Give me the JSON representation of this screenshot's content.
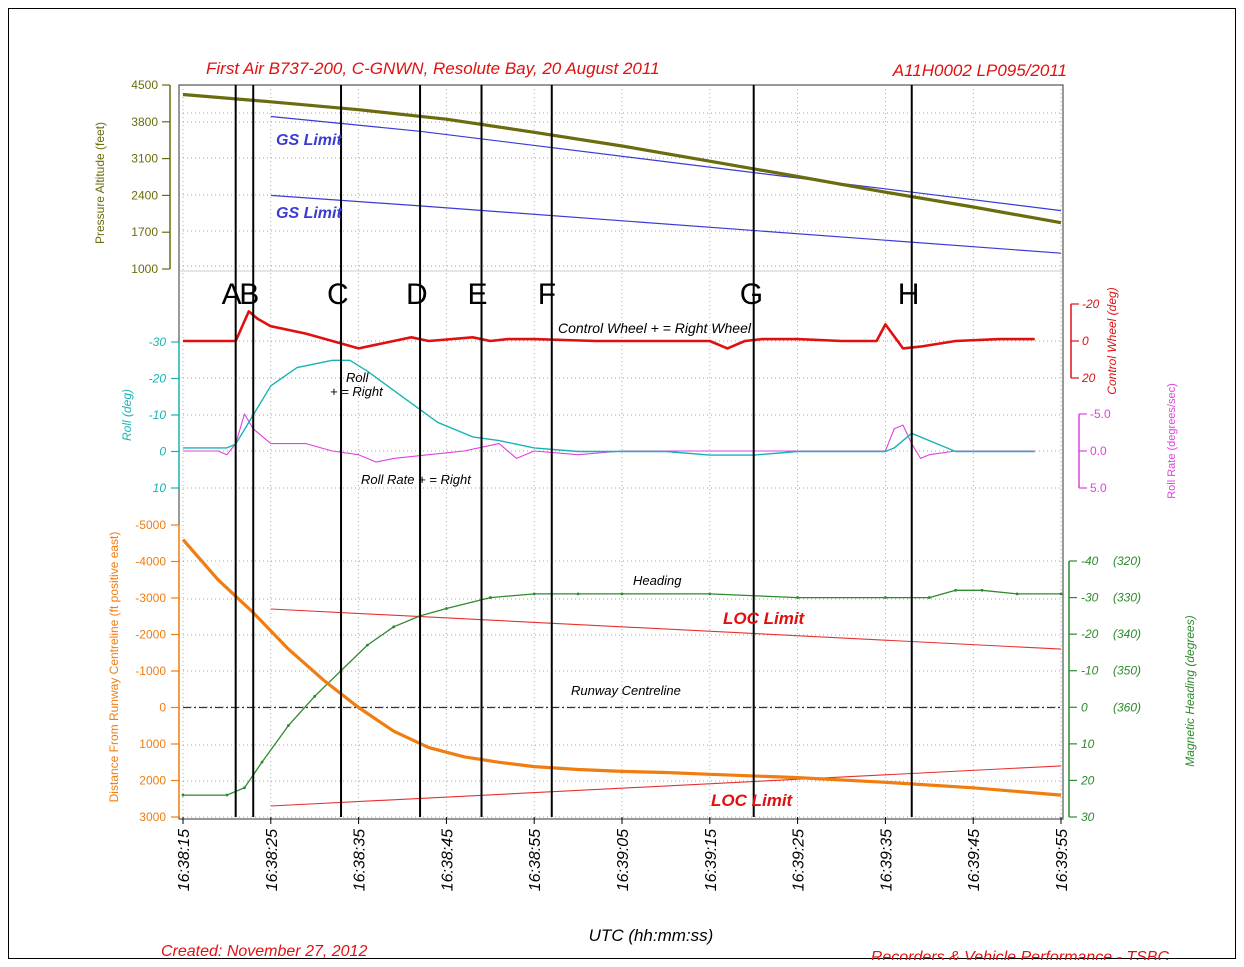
{
  "header": {
    "title": "First Air B737-200, C-GNWN, Resolute Bay, 20 August 2011",
    "report_id": "A11H0002 LP095/2011"
  },
  "footer": {
    "created": "Created: November 27, 2012",
    "org": "Recorders & Vehicle Performance - TSBC"
  },
  "colors": {
    "altitude": "#6b6b0f",
    "gs_limit": "#3b3bd6",
    "control_wheel": "#e01010",
    "roll": "#17b3b3",
    "roll_rate": "#e040e0",
    "distance": "#f07d10",
    "heading": "#2d8a2d",
    "loc_limit": "#e83030",
    "title_red": "#e01010"
  },
  "chart_data": {
    "type": "line",
    "xlabel": "UTC (hh:mm:ss)",
    "x_ticks": [
      "16:38:15",
      "16:38:25",
      "16:38:35",
      "16:38:45",
      "16:38:55",
      "16:39:05",
      "16:39:15",
      "16:39:25",
      "16:39:35",
      "16:39:45",
      "16:39:55"
    ],
    "event_markers": [
      {
        "label": "A",
        "t": "16:38:21"
      },
      {
        "label": "B",
        "t": "16:38:23"
      },
      {
        "label": "C",
        "t": "16:38:33"
      },
      {
        "label": "D",
        "t": "16:38:42"
      },
      {
        "label": "E",
        "t": "16:38:49"
      },
      {
        "label": "F",
        "t": "16:38:57"
      },
      {
        "label": "G",
        "t": "16:39:20"
      },
      {
        "label": "H",
        "t": "16:39:38"
      }
    ],
    "panels": {
      "altitude": {
        "ylabel": "Pressure Altitude (feet)",
        "y_ticks": [
          "4500",
          "3800",
          "3100",
          "2400",
          "1700",
          "1000"
        ],
        "ylim": [
          1000,
          4500
        ],
        "series": [
          {
            "name": "Pressure Altitude",
            "t": [
              0,
              10,
              20,
              30,
              40,
              50,
              60,
              70,
              80,
              90,
              100
            ],
            "values": [
              4320,
              4180,
              4030,
              3850,
              3600,
              3340,
              3050,
              2760,
              2460,
              2180,
              1880
            ]
          },
          {
            "name": "GS Limit",
            "label": "GS Limit",
            "t": [
              10,
              27,
              100
            ],
            "values": [
              3900,
              3620,
              2110
            ]
          },
          {
            "name": "GS Limit",
            "label": "GS Limit",
            "t": [
              10,
              27,
              100
            ],
            "values": [
              2400,
              2200,
              1300
            ]
          }
        ]
      },
      "attitude": {
        "control_wheel": {
          "label": "Control Wheel + = Right Wheel",
          "ylabel": "Control Wheel (deg)",
          "y_ticks": [
            "-20",
            "0",
            "20"
          ],
          "ylim": [
            -20,
            20
          ],
          "t": [
            0,
            5,
            6,
            7.5,
            8.5,
            10,
            14,
            17,
            20,
            22,
            24,
            26,
            28,
            33,
            35,
            37,
            40,
            47,
            55,
            60,
            62,
            64,
            66,
            70,
            75,
            79,
            80,
            82,
            84,
            88,
            93,
            97
          ],
          "values": [
            0,
            0,
            0,
            -16,
            -12,
            -8,
            -4,
            0,
            4,
            2,
            0,
            -2,
            0,
            -2,
            0,
            -1,
            -1,
            0,
            0,
            0,
            4,
            0,
            -1,
            -1,
            0,
            0,
            -9,
            4,
            3,
            0,
            -1,
            -1
          ]
        },
        "roll": {
          "label_a": "Roll",
          "label_b": "+ = Right",
          "ylabel": "Roll (deg)",
          "y_ticks": [
            "-30",
            "-20",
            "-10",
            "0",
            "10"
          ],
          "ylim": [
            -30,
            10
          ],
          "t": [
            0,
            5,
            6,
            8,
            10,
            13,
            17,
            19,
            21,
            25,
            29,
            33,
            36,
            40,
            45,
            50,
            55,
            60,
            65,
            70,
            75,
            80,
            81,
            83,
            85,
            88,
            93,
            97
          ],
          "values": [
            -1,
            -1,
            -2,
            -10,
            -18,
            -23,
            -25,
            -25,
            -22,
            -15,
            -8,
            -4,
            -3,
            -1,
            0,
            0,
            0,
            1,
            1,
            0,
            0,
            0,
            -1,
            -5,
            -3,
            0,
            0,
            0
          ]
        },
        "roll_rate": {
          "label": "Roll Rate + = Right",
          "ylabel": "Roll Rate (degrees/sec)",
          "y_ticks": [
            "-5.0",
            "0.0",
            "5.0"
          ],
          "ylim": [
            -5,
            5
          ],
          "t": [
            0,
            4,
            5,
            6,
            7,
            8,
            10,
            14,
            17,
            20,
            22,
            24,
            28,
            32,
            36,
            38,
            40,
            45,
            50,
            60,
            70,
            80,
            81,
            82,
            83,
            84,
            85,
            88,
            92,
            97
          ],
          "values": [
            0,
            0,
            0.5,
            -1,
            -5,
            -3,
            -1,
            -1,
            0,
            0.5,
            1.5,
            1,
            0.5,
            0,
            -1,
            1,
            0,
            0.5,
            0,
            0,
            0,
            0,
            -3,
            -3.5,
            -1,
            1,
            0.5,
            0,
            0,
            0
          ]
        }
      },
      "track": {
        "distance": {
          "ylabel": "Distance From Runway Centreline (ft positive east)",
          "y_ticks": [
            "-5000",
            "-4000",
            "-3000",
            "-2000",
            "-1000",
            "0",
            "1000",
            "2000",
            "3000"
          ],
          "ylim": [
            -5000,
            3000
          ],
          "t": [
            0,
            4,
            8,
            12,
            16,
            20,
            24,
            28,
            32,
            36,
            40,
            45,
            50,
            55,
            60,
            70,
            80,
            90,
            100
          ],
          "values": [
            -4600,
            -3500,
            -2600,
            -1600,
            -750,
            0,
            650,
            1100,
            1350,
            1500,
            1620,
            1700,
            1750,
            1780,
            1830,
            1920,
            2050,
            2200,
            2400
          ]
        },
        "heading": {
          "label": "Heading",
          "ylabel": "Magnetic Heading (degrees)",
          "y_ticks_dev": [
            "-40",
            "-30",
            "-20",
            "-10",
            "0",
            "10",
            "20",
            "30"
          ],
          "y_ticks_hdg": [
            "(320)",
            "(330)",
            "(340)",
            "(350)",
            "(360)"
          ],
          "ylim": [
            -40,
            30
          ],
          "t": [
            0,
            5,
            7,
            9,
            12,
            15,
            18,
            21,
            24,
            27,
            30,
            35,
            40,
            45,
            50,
            60,
            70,
            80,
            85,
            88,
            91,
            95,
            100
          ],
          "values": [
            24,
            24,
            22,
            15,
            5,
            -3,
            -10,
            -17,
            -22,
            -25,
            -27,
            -30,
            -31,
            -31,
            -31,
            -31,
            -30,
            -30,
            -30,
            -32,
            -32,
            -31,
            -31
          ]
        },
        "loc_limit_upper": {
          "label": "LOC Limit",
          "t": [
            10,
            100
          ],
          "values": [
            -2700,
            -1600
          ]
        },
        "loc_limit_lower": {
          "label": "LOC Limit",
          "t": [
            10,
            100
          ],
          "values": [
            2700,
            1600
          ]
        },
        "runway_centreline": {
          "label": "Runway Centreline",
          "value": 0
        }
      }
    }
  }
}
